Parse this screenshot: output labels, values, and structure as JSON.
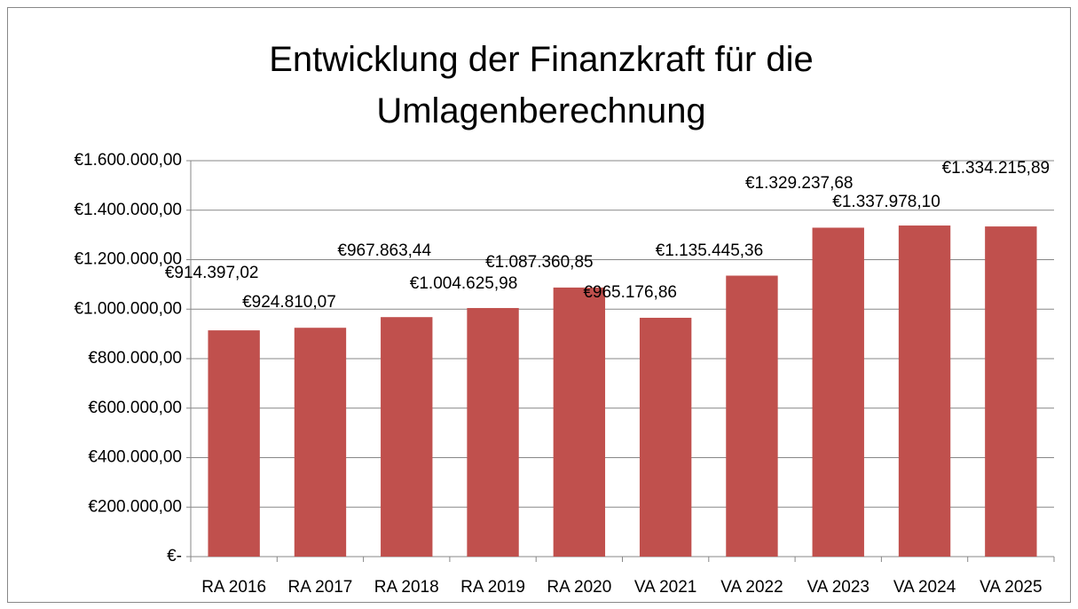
{
  "chart_data": {
    "type": "bar",
    "title": "Entwicklung der Finanzkraft für die Umlagenberechnung",
    "categories": [
      "RA 2016",
      "RA 2017",
      "RA 2018",
      "RA 2019",
      "RA 2020",
      "VA 2021",
      "VA 2022",
      "VA 2023",
      "VA 2024",
      "VA 2025"
    ],
    "values": [
      914397.02,
      924810.07,
      967863.44,
      1004625.98,
      1087360.85,
      965176.86,
      1135445.36,
      1329237.68,
      1337978.1,
      1334215.89
    ],
    "value_labels": [
      "€914.397,02",
      "€924.810,07",
      "€967.863,44",
      "€1.004.625,98",
      "€1.087.360,85",
      "€965.176,86",
      "€1.135.445,36",
      "€1.329.237,68",
      "€1.337.978,10",
      "€1.334.215,89"
    ],
    "color": "#c0504d",
    "ylim": [
      0,
      1600000
    ],
    "yticks": [
      {
        "value": 0,
        "label": "€-"
      },
      {
        "value": 200000,
        "label": "€200.000,00"
      },
      {
        "value": 400000,
        "label": "€400.000,00"
      },
      {
        "value": 600000,
        "label": "€600.000,00"
      },
      {
        "value": 800000,
        "label": "€800.000,00"
      },
      {
        "value": 1000000,
        "label": "€1.000.000,00"
      },
      {
        "value": 1200000,
        "label": "€1.200.000,00"
      },
      {
        "value": 1400000,
        "label": "€1.400.000,00"
      },
      {
        "value": 1600000,
        "label": "€1.600.000,00"
      }
    ],
    "grid": true
  }
}
